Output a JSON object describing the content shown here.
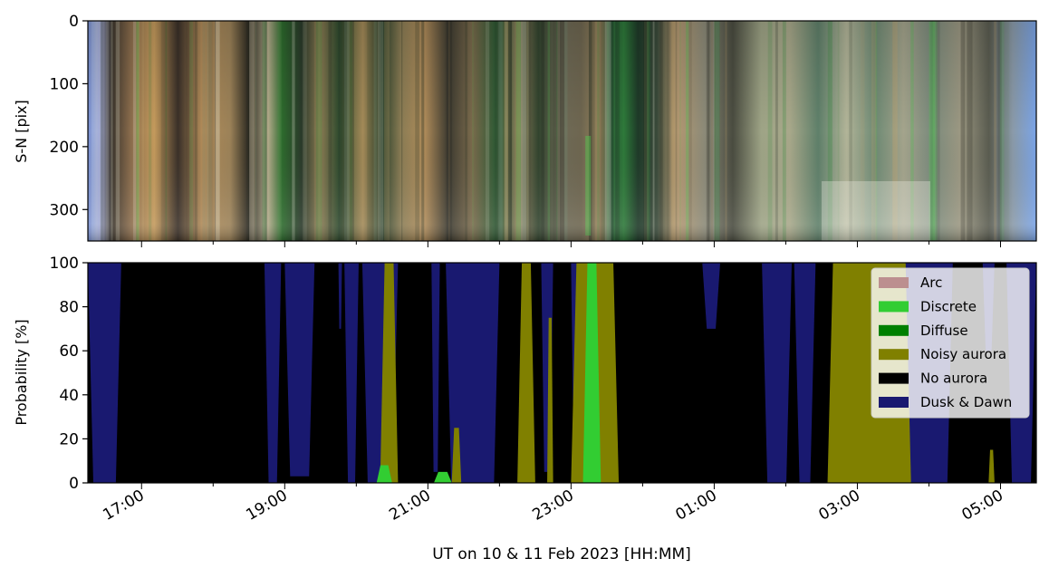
{
  "chart_data": [
    {
      "type": "heatmap",
      "panel": "keogram",
      "ylabel": "S-N [pix]",
      "ylim": [
        350,
        0
      ],
      "yticks": [
        0,
        100,
        200,
        300
      ],
      "xlim": [
        "16:15",
        "05:30"
      ],
      "description_colors": [
        "#6f8ee0",
        "#b48e58",
        "#2a2a20",
        "#3ea23e",
        "#a6a682",
        "#8aa290",
        "#e8e8dc"
      ]
    },
    {
      "type": "area",
      "panel": "classification",
      "ylabel": "Probability [%]",
      "xlabel": "UT on 10 & 11 Feb 2023 [HH:MM]",
      "ylim": [
        0,
        100
      ],
      "yticks": [
        0,
        20,
        40,
        60,
        80,
        100
      ],
      "xlim": [
        "16:15",
        "05:30"
      ],
      "xticks": [
        "17:00",
        "19:00",
        "21:00",
        "23:00",
        "01:00",
        "03:00",
        "05:00"
      ],
      "legend": {
        "placement": "top-right",
        "entries": [
          {
            "label": "Arc",
            "color": "#bc8f8f"
          },
          {
            "label": "Discrete",
            "color": "#32cd32"
          },
          {
            "label": "Diffuse",
            "color": "#008000"
          },
          {
            "label": "Noisy aurora",
            "color": "#808000"
          },
          {
            "label": "No aurora",
            "color": "#000000"
          },
          {
            "label": "Dusk & Dawn",
            "color": "#191970"
          }
        ]
      },
      "dusk_dawn_intervals": [
        [
          "16:15",
          "16:43",
          100
        ],
        [
          "18:43",
          "18:57",
          100
        ],
        [
          "19:00",
          "19:25",
          97
        ],
        [
          "19:45",
          "19:48",
          30
        ],
        [
          "19:50",
          "20:02",
          100
        ],
        [
          "20:05",
          "20:35",
          100
        ],
        [
          "21:03",
          "21:10",
          95
        ],
        [
          "21:15",
          "22:00",
          100
        ],
        [
          "22:35",
          "22:45",
          95
        ],
        [
          "23:00",
          "23:10",
          100
        ],
        [
          "00:50",
          "01:05",
          30
        ],
        [
          "01:40",
          "02:05",
          100
        ],
        [
          "02:07",
          "02:25",
          100
        ],
        [
          "02:40",
          "03:30",
          100
        ],
        [
          "03:40",
          "04:20",
          100
        ],
        [
          "04:45",
          "04:55",
          40
        ],
        [
          "05:05",
          "05:30",
          100
        ]
      ],
      "noisy_aurora_intervals": [
        [
          "20:20",
          "20:35",
          100
        ],
        [
          "21:20",
          "21:28",
          25
        ],
        [
          "22:15",
          "22:30",
          100
        ],
        [
          "22:40",
          "22:45",
          75
        ],
        [
          "23:00",
          "23:40",
          100
        ],
        [
          "02:35",
          "03:45",
          100
        ],
        [
          "04:50",
          "04:55",
          15
        ]
      ],
      "discrete_intervals": [
        [
          "23:10",
          "23:25",
          100
        ],
        [
          "20:17",
          "20:30",
          8
        ],
        [
          "21:05",
          "21:20",
          5
        ]
      ]
    }
  ]
}
